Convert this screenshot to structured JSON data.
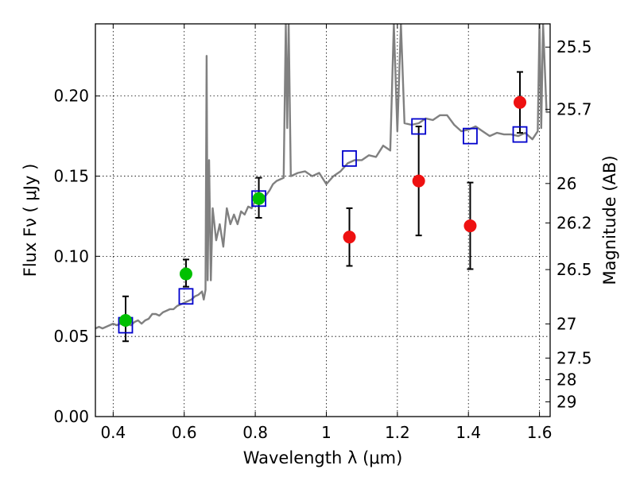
{
  "chart_data": {
    "type": "scatter",
    "xlabel": "Wavelength  λ (μm)",
    "ylabel": "Flux  Fν  ( μJy )",
    "ylabel_right": "Magnitude (AB)",
    "xlim": [
      0.35,
      1.63
    ],
    "ylim": [
      0.0,
      0.245
    ],
    "grid": true,
    "x_ticks": [
      0.4,
      0.6,
      0.8,
      1.0,
      1.2,
      1.4,
      1.6
    ],
    "x_tick_labels": [
      "0.4",
      "0.6",
      "0.8",
      "1",
      "1.2",
      "1.4",
      "1.6"
    ],
    "y_ticks": [
      0.0,
      0.05,
      0.1,
      0.15,
      0.2
    ],
    "y_tick_labels": [
      "0.00",
      "0.05",
      "0.10",
      "0.15",
      "0.20"
    ],
    "right_ticks": [
      {
        "mag": "25.5",
        "flux": 0.2305
      },
      {
        "mag": "25.7",
        "flux": 0.1917
      },
      {
        "mag": "26",
        "flux": 0.1454
      },
      {
        "mag": "26.2",
        "flux": 0.1208
      },
      {
        "mag": "26.5",
        "flux": 0.0917
      },
      {
        "mag": "27",
        "flux": 0.0578
      },
      {
        "mag": "27.5",
        "flux": 0.0365
      },
      {
        "mag": "28",
        "flux": 0.023
      },
      {
        "mag": "29",
        "flux": 0.0092
      }
    ],
    "series": [
      {
        "style": "model-spectrum",
        "color": "#808080",
        "x": [
          0.35,
          0.36,
          0.37,
          0.38,
          0.39,
          0.4,
          0.41,
          0.42,
          0.43,
          0.44,
          0.45,
          0.46,
          0.47,
          0.48,
          0.49,
          0.5,
          0.51,
          0.52,
          0.53,
          0.54,
          0.55,
          0.56,
          0.57,
          0.58,
          0.59,
          0.6,
          0.61,
          0.62,
          0.63,
          0.64,
          0.65,
          0.655,
          0.66,
          0.663,
          0.666,
          0.67,
          0.675,
          0.68,
          0.69,
          0.7,
          0.71,
          0.72,
          0.73,
          0.74,
          0.75,
          0.76,
          0.77,
          0.78,
          0.79,
          0.8,
          0.81,
          0.82,
          0.83,
          0.84,
          0.85,
          0.86,
          0.87,
          0.88,
          0.886,
          0.89,
          0.894,
          0.9,
          0.92,
          0.94,
          0.96,
          0.98,
          1.0,
          1.02,
          1.04,
          1.06,
          1.08,
          1.1,
          1.12,
          1.14,
          1.16,
          1.18,
          1.19,
          1.2,
          1.21,
          1.22,
          1.24,
          1.26,
          1.28,
          1.3,
          1.32,
          1.34,
          1.36,
          1.38,
          1.4,
          1.42,
          1.44,
          1.46,
          1.48,
          1.5,
          1.52,
          1.54,
          1.56,
          1.58,
          1.595,
          1.6,
          1.605,
          1.61,
          1.62,
          1.63
        ],
        "y": [
          0.055,
          0.056,
          0.055,
          0.056,
          0.057,
          0.058,
          0.057,
          0.058,
          0.057,
          0.058,
          0.057,
          0.059,
          0.06,
          0.058,
          0.06,
          0.061,
          0.064,
          0.064,
          0.063,
          0.065,
          0.066,
          0.067,
          0.067,
          0.069,
          0.07,
          0.071,
          0.072,
          0.073,
          0.075,
          0.076,
          0.078,
          0.073,
          0.079,
          0.225,
          0.085,
          0.16,
          0.085,
          0.13,
          0.11,
          0.12,
          0.106,
          0.13,
          0.12,
          0.126,
          0.12,
          0.128,
          0.126,
          0.131,
          0.13,
          0.135,
          0.135,
          0.137,
          0.138,
          0.141,
          0.145,
          0.147,
          0.148,
          0.149,
          0.245,
          0.18,
          0.245,
          0.15,
          0.152,
          0.153,
          0.15,
          0.152,
          0.145,
          0.15,
          0.153,
          0.158,
          0.16,
          0.16,
          0.163,
          0.162,
          0.169,
          0.166,
          0.245,
          0.178,
          0.245,
          0.183,
          0.182,
          0.183,
          0.186,
          0.185,
          0.188,
          0.188,
          0.182,
          0.178,
          0.179,
          0.181,
          0.178,
          0.175,
          0.177,
          0.176,
          0.176,
          0.175,
          0.177,
          0.173,
          0.178,
          0.245,
          0.18,
          0.245,
          0.19,
          0.19
        ]
      },
      {
        "style": "model-points",
        "marker": "open-square",
        "color": "#0000cc",
        "x": [
          0.435,
          0.605,
          0.81,
          1.065,
          1.26,
          1.405,
          1.545
        ],
        "y": [
          0.057,
          0.075,
          0.136,
          0.161,
          0.181,
          0.175,
          0.176
        ]
      },
      {
        "style": "observed-points",
        "marker": "filled-circle",
        "color": "#00c000",
        "x": [
          0.435,
          0.605,
          0.81
        ],
        "y": [
          0.06,
          0.089,
          0.136
        ],
        "yerr_low": [
          0.013,
          0.008,
          0.012
        ],
        "yerr_high": [
          0.015,
          0.009,
          0.013
        ]
      },
      {
        "style": "observed-points",
        "marker": "filled-circle",
        "color": "#ee1111",
        "x": [
          1.065,
          1.26,
          1.405,
          1.545
        ],
        "y": [
          0.112,
          0.147,
          0.119,
          0.196
        ],
        "yerr_low": [
          0.018,
          0.034,
          0.027,
          0.019
        ],
        "yerr_high": [
          0.018,
          0.034,
          0.027,
          0.019
        ]
      }
    ]
  }
}
